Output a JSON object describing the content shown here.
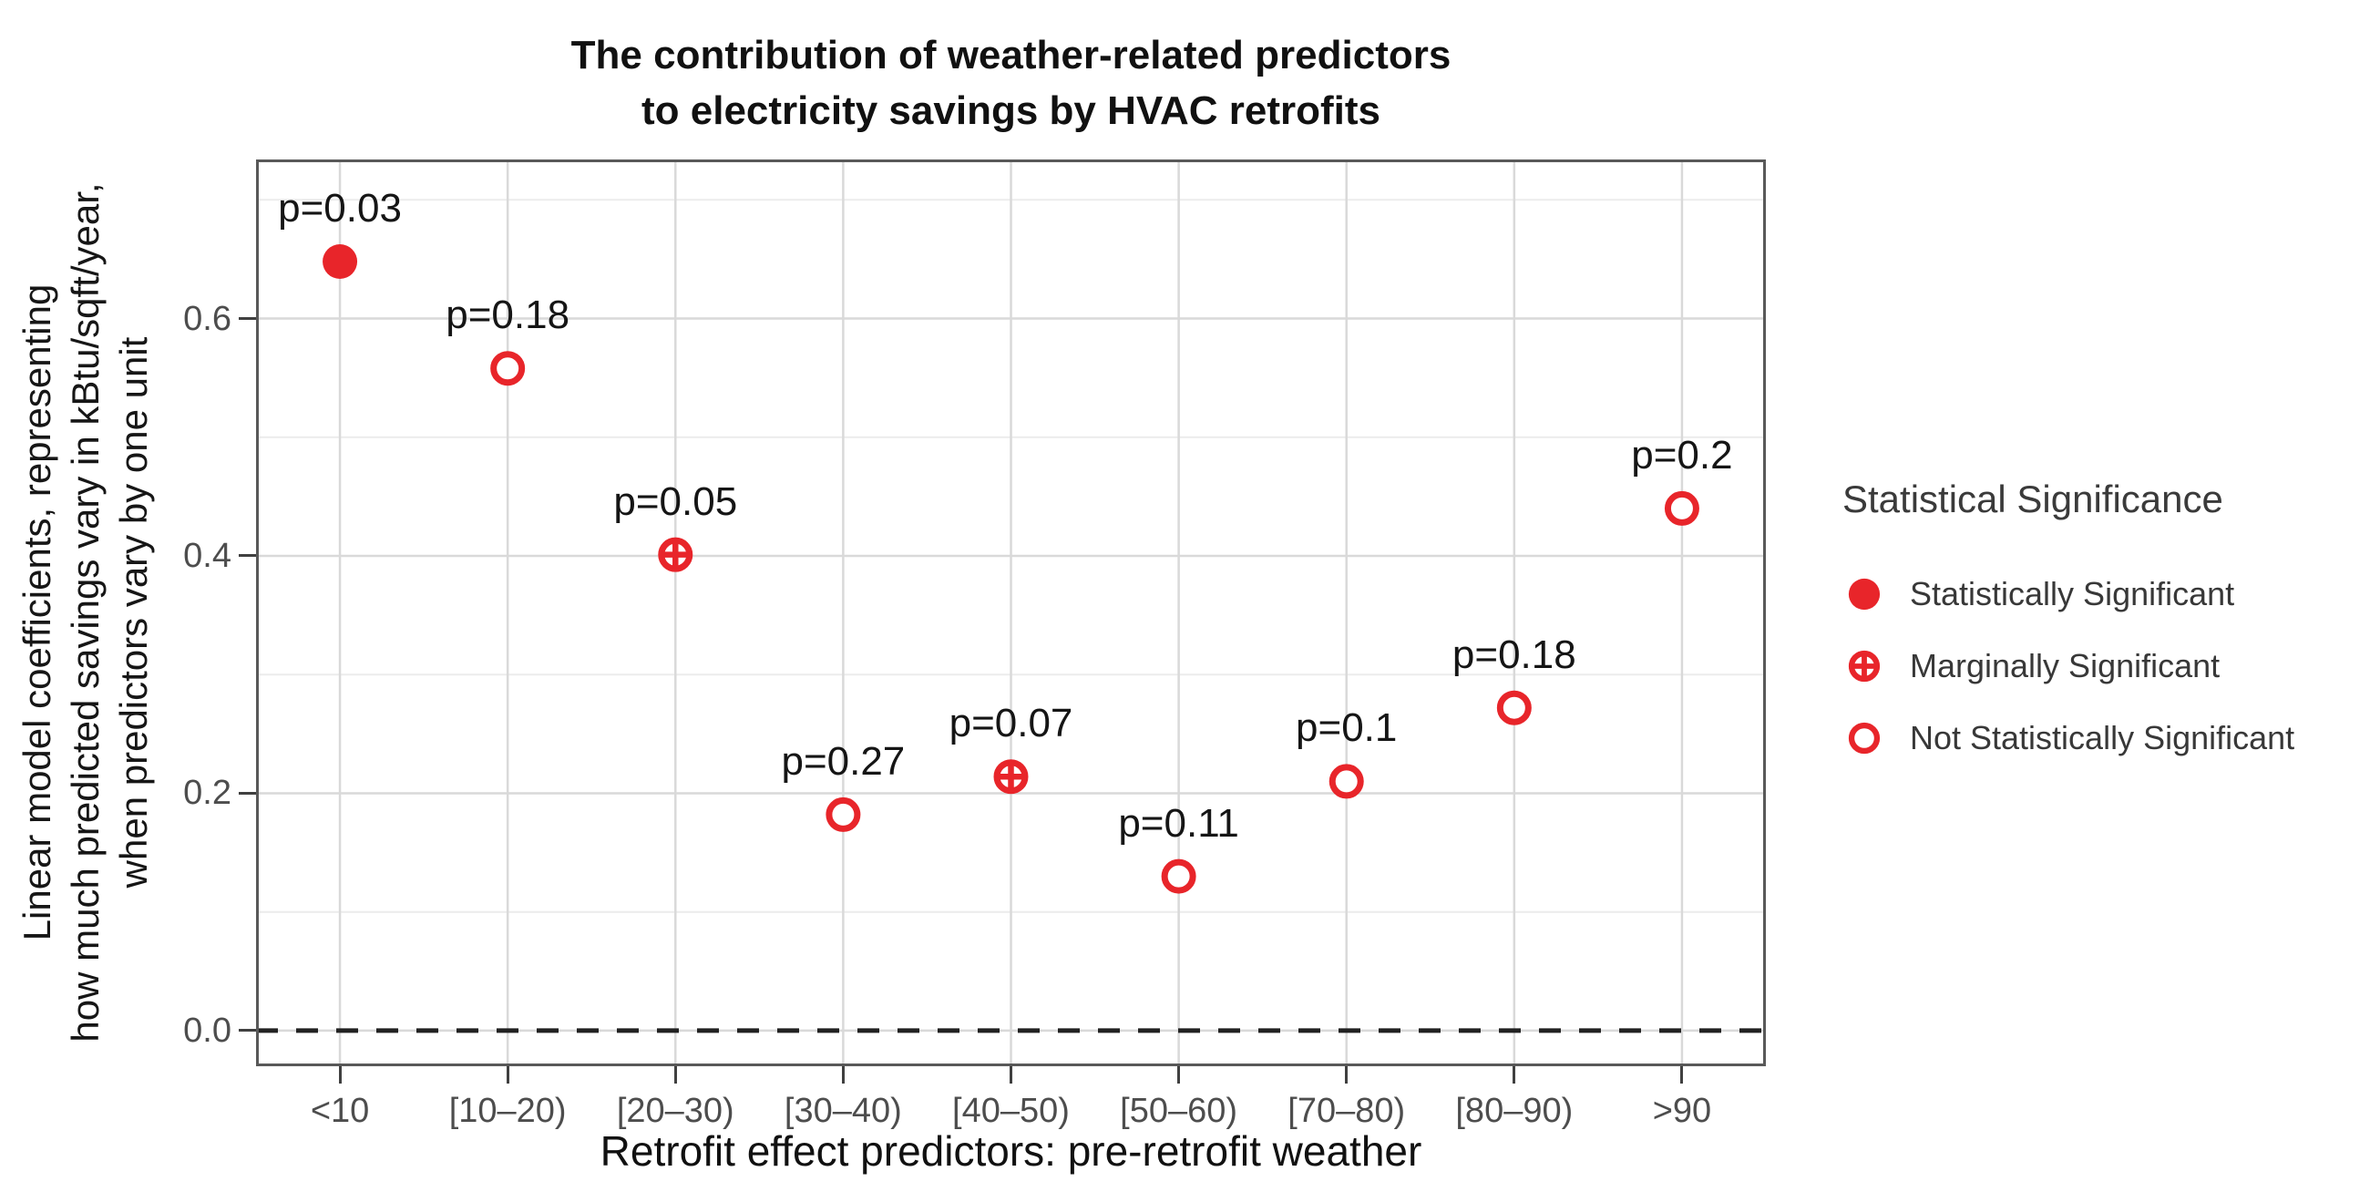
{
  "title": {
    "lines": [
      "The contribution of weather-related predictors",
      "to electricity savings by HVAC retrofits"
    ]
  },
  "y_axis": {
    "label_lines": [
      "Linear model coefficients, representing",
      "how much predicted savings vary in kBtu/sqft/year,",
      "when predictors vary by one unit"
    ],
    "tick_labels": [
      "0.0",
      "0.2",
      "0.4",
      "0.6"
    ]
  },
  "x_axis": {
    "title": "Retrofit effect predictors: pre-retrofit weather"
  },
  "legend": {
    "title": "Statistical Significance",
    "items": [
      {
        "label": "Statistically Significant",
        "significance": "significant"
      },
      {
        "label": "Marginally Significant",
        "significance": "marginal"
      },
      {
        "label": "Not Statistically Significant",
        "significance": "none"
      }
    ]
  },
  "colors": {
    "red": "#e8252a",
    "grid_major": "#d9d9d9",
    "grid_minor": "#ececec",
    "panel_border": "#595959",
    "zero_line": "#222222",
    "tick_text": "#4d4d4d",
    "label_text": "#151515"
  },
  "chart_data": {
    "type": "scatter",
    "title": "The contribution of weather-related predictors to electricity savings by HVAC retrofits",
    "xlabel": "Retrofit effect predictors: pre-retrofit weather",
    "ylabel": "Linear model coefficients, representing how much predicted savings vary in kBtu/sqft/year, when predictors vary by one unit",
    "categories": [
      "<10",
      "[10–20)",
      "[20–30)",
      "[30–40)",
      "[40–50)",
      "[50–60)",
      "[70–80)",
      "[80–90)",
      ">90"
    ],
    "series": [
      {
        "name": "Linear model coefficient",
        "values": [
          0.648,
          0.558,
          0.401,
          0.182,
          0.214,
          0.13,
          0.21,
          0.272,
          0.44
        ]
      }
    ],
    "point_labels": [
      "p=0.03",
      "p=0.18",
      "p=0.05",
      "p=0.27",
      "p=0.07",
      "p=0.11",
      "p=0.1",
      "p=0.18",
      "p=0.2"
    ],
    "significance": [
      "significant",
      "none",
      "marginal",
      "none",
      "marginal",
      "none",
      "none",
      "none",
      "none"
    ],
    "ylim": [
      -0.03,
      0.734
    ],
    "y_major_ticks": [
      0.0,
      0.2,
      0.4,
      0.6
    ],
    "y_minor_ticks": [
      0.1,
      0.3,
      0.5,
      0.7
    ],
    "zero_reference_line": "dashed",
    "grid": true,
    "legend_position": "right"
  }
}
